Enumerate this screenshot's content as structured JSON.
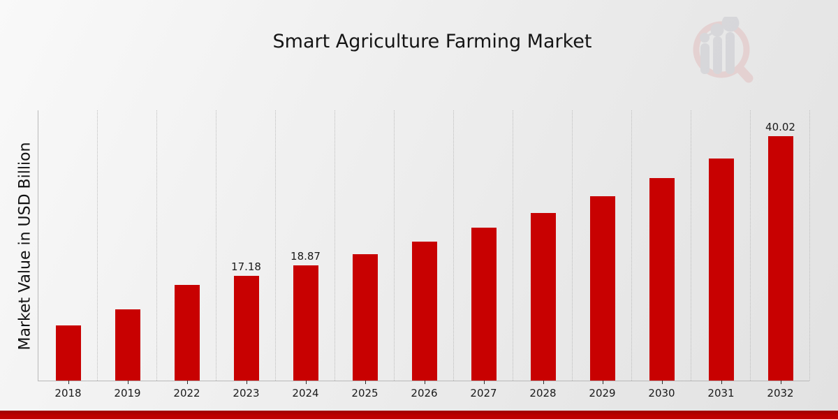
{
  "chart_data": {
    "type": "bar",
    "title": "Smart Agriculture Farming Market",
    "ylabel": "Market Value in USD Billion",
    "xlabel": "",
    "categories": [
      "2018",
      "2019",
      "2022",
      "2023",
      "2024",
      "2025",
      "2026",
      "2027",
      "2028",
      "2029",
      "2030",
      "2031",
      "2032"
    ],
    "values": [
      9.05,
      11.72,
      15.64,
      17.18,
      18.87,
      20.73,
      22.77,
      25.02,
      27.48,
      30.19,
      33.17,
      36.44,
      40.02
    ],
    "data_labels": [
      "",
      "",
      "",
      "17.18",
      "18.87",
      "",
      "",
      "",
      "",
      "",
      "",
      "",
      "40.02"
    ],
    "ylim": [
      0,
      44.4
    ],
    "grid": "vertical-dotted",
    "legend": "none",
    "bar_color": "#c80101",
    "gridline_color": "#bdbdbd",
    "axis_spine_color": "#b9b9b9",
    "label_color": "#1a1a1a"
  },
  "branding": {
    "watermark_icon": "bar-chart-magnifier-logo",
    "watermark_ring_color": "#e2bcbc",
    "watermark_bar_color": "#c7c7cd",
    "footer_accent_color": "#bb0000"
  }
}
